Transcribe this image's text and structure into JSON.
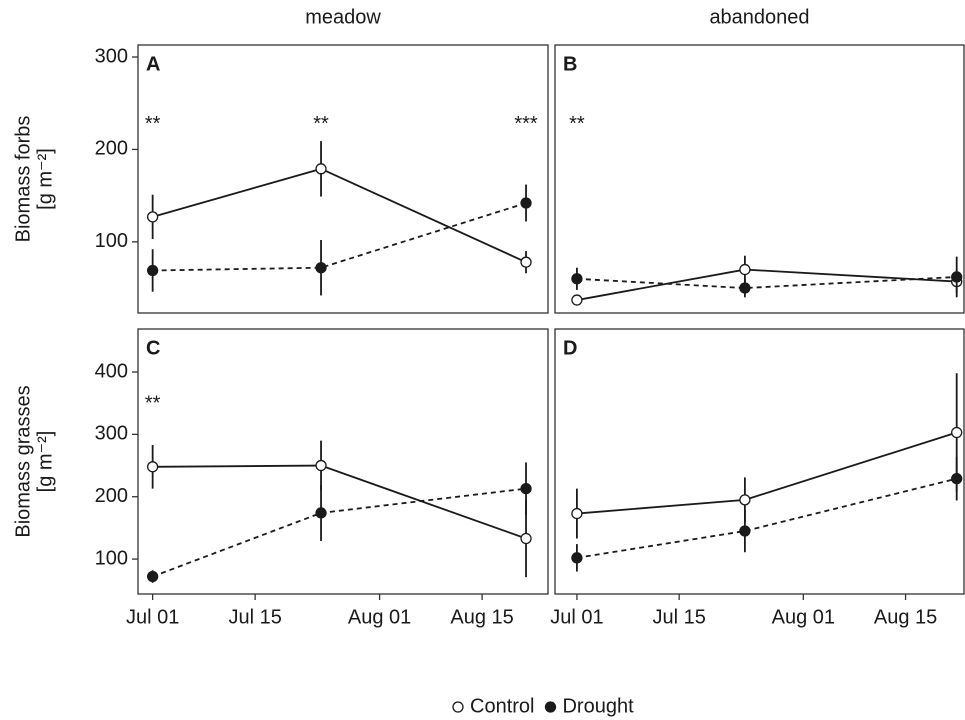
{
  "chart_data": [
    {
      "type": "line",
      "column_title": "meadow",
      "label": "A",
      "ylabel": [
        "Biomass forbs",
        "[g m⁻²]"
      ],
      "xlim": [
        "Jun 29",
        "Aug 24"
      ],
      "ylim": [
        23,
        313
      ],
      "yticks": [
        100,
        200,
        300
      ],
      "series": [
        {
          "name": "Control",
          "color": "#ffffff",
          "linestyle": "solid",
          "x": [
            "Jul 01",
            "Jul 24",
            "Aug 21"
          ],
          "values": [
            127,
            179,
            78
          ],
          "errors": [
            24,
            30,
            12
          ]
        },
        {
          "name": "Drought",
          "color": "#1a1a1a",
          "linestyle": "dashed",
          "x": [
            "Jul 01",
            "Jul 24",
            "Aug 21"
          ],
          "values": [
            69,
            72,
            142
          ],
          "errors": [
            23,
            30,
            20
          ]
        }
      ],
      "annotations": [
        {
          "text": "**",
          "x": "Jul 01",
          "y": 231
        },
        {
          "text": "**",
          "x": "Jul 24",
          "y": 231
        },
        {
          "text": "***",
          "x": "Aug 21",
          "y": 231
        }
      ]
    },
    {
      "type": "line",
      "column_title": "abandoned",
      "label": "B",
      "xlim": [
        "Jun 28",
        "Aug 23"
      ],
      "ylim": [
        23,
        313
      ],
      "series": [
        {
          "color": "#ffffff",
          "linestyle": "solid",
          "x": [
            "Jul 01",
            "Jul 24",
            "Aug 22"
          ],
          "values": [
            37,
            70,
            57
          ],
          "errors": [
            3,
            15,
            12
          ]
        },
        {
          "color": "#1a1a1a",
          "linestyle": "dashed",
          "x": [
            "Jul 01",
            "Jul 24",
            "Aug 22"
          ],
          "values": [
            60,
            50,
            62
          ],
          "errors": [
            12,
            10,
            22
          ]
        }
      ],
      "annotations": [
        {
          "text": "**",
          "x": "Jul 01",
          "y": 231
        }
      ]
    },
    {
      "type": "line",
      "label": "C",
      "ylabel": [
        "Biomass grasses",
        "[g m⁻²]"
      ],
      "xlim": [
        "Jun 29",
        "Aug 24"
      ],
      "xticks": [
        "Jul 01",
        "Jul 15",
        "Aug 01",
        "Aug 15"
      ],
      "ylim": [
        44,
        469
      ],
      "yticks": [
        100,
        200,
        300,
        400
      ],
      "series": [
        {
          "color": "#ffffff",
          "linestyle": "solid",
          "x": [
            "Jul 01",
            "Jul 24",
            "Aug 21"
          ],
          "values": [
            248,
            250,
            133
          ],
          "errors": [
            35,
            40,
            62
          ]
        },
        {
          "color": "#1a1a1a",
          "linestyle": "dashed",
          "x": [
            "Jul 01",
            "Jul 24",
            "Aug 21"
          ],
          "values": [
            72,
            174,
            213
          ],
          "errors": [
            10,
            45,
            42
          ]
        }
      ],
      "annotations": [
        {
          "text": "**",
          "x": "Jul 01",
          "y": 355
        }
      ]
    },
    {
      "type": "line",
      "label": "D",
      "xlim": [
        "Jun 28",
        "Aug 23"
      ],
      "xticks": [
        "Jul 01",
        "Jul 15",
        "Aug 01",
        "Aug 15"
      ],
      "ylim": [
        44,
        469
      ],
      "series": [
        {
          "color": "#ffffff",
          "linestyle": "solid",
          "x": [
            "Jul 01",
            "Jul 24",
            "Aug 22"
          ],
          "values": [
            173,
            195,
            303
          ],
          "errors": [
            40,
            36,
            95
          ]
        },
        {
          "color": "#1a1a1a",
          "linestyle": "dashed",
          "x": [
            "Jul 01",
            "Jul 24",
            "Aug 22"
          ],
          "values": [
            102,
            145,
            229
          ],
          "errors": [
            22,
            34,
            35
          ]
        }
      ],
      "annotations": []
    }
  ]
}
